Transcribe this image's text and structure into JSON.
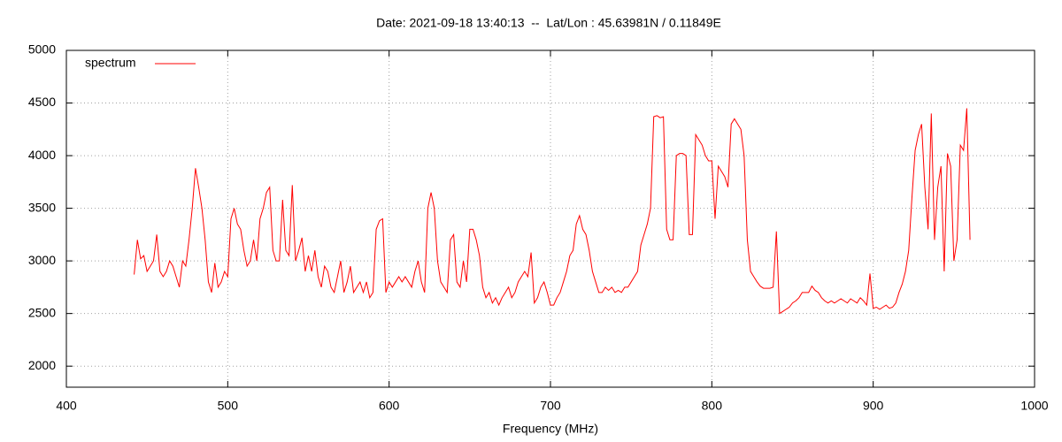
{
  "chart_data": {
    "type": "line",
    "title": "Date: 2021-09-18 13:40:13  --  Lat/Lon : 45.63981N / 0.11849E",
    "x_label": "Frequency (MHz)",
    "xlim": [
      400,
      1000
    ],
    "xticks": [
      400,
      500,
      600,
      700,
      800,
      900,
      1000
    ],
    "ylim": [
      1800,
      5000
    ],
    "yticks": [
      2000,
      2500,
      3000,
      3500,
      4000,
      4500,
      5000
    ],
    "grid": true,
    "legend": "top-left",
    "x": [
      442,
      444,
      446,
      448,
      450,
      452,
      454,
      456,
      458,
      460,
      462,
      464,
      466,
      468,
      470,
      472,
      474,
      476,
      478,
      480,
      482,
      484,
      486,
      488,
      490,
      492,
      494,
      496,
      498,
      500,
      502,
      504,
      506,
      508,
      510,
      512,
      514,
      516,
      518,
      520,
      522,
      524,
      526,
      528,
      530,
      532,
      534,
      536,
      538,
      540,
      542,
      544,
      546,
      548,
      550,
      552,
      554,
      556,
      558,
      560,
      562,
      564,
      566,
      568,
      570,
      572,
      574,
      576,
      578,
      580,
      582,
      584,
      586,
      588,
      590,
      592,
      594,
      596,
      598,
      600,
      602,
      604,
      606,
      608,
      610,
      612,
      614,
      616,
      618,
      620,
      622,
      624,
      626,
      628,
      630,
      632,
      634,
      636,
      638,
      640,
      642,
      644,
      646,
      648,
      650,
      652,
      654,
      656,
      658,
      660,
      662,
      664,
      666,
      668,
      670,
      672,
      674,
      676,
      678,
      680,
      682,
      684,
      686,
      688,
      690,
      692,
      694,
      696,
      698,
      700,
      702,
      704,
      706,
      708,
      710,
      712,
      714,
      716,
      718,
      720,
      722,
      724,
      726,
      728,
      730,
      732,
      734,
      736,
      738,
      740,
      742,
      744,
      746,
      748,
      750,
      752,
      754,
      756,
      758,
      760,
      762,
      764,
      766,
      768,
      770,
      772,
      774,
      776,
      778,
      780,
      782,
      784,
      786,
      788,
      790,
      792,
      794,
      796,
      798,
      800,
      802,
      804,
      806,
      808,
      810,
      812,
      814,
      816,
      818,
      820,
      822,
      824,
      826,
      828,
      830,
      832,
      834,
      836,
      838,
      840,
      842,
      844,
      846,
      848,
      850,
      852,
      854,
      856,
      858,
      860,
      862,
      864,
      866,
      868,
      870,
      872,
      874,
      876,
      878,
      880,
      882,
      884,
      886,
      888,
      890,
      892,
      894,
      896,
      898,
      900,
      902,
      904,
      906,
      908,
      910,
      912,
      914,
      916,
      918,
      920,
      922,
      924,
      926,
      928,
      930,
      932,
      934,
      936,
      938,
      940,
      942,
      944,
      946,
      948,
      950,
      952,
      954,
      956,
      958,
      960
    ],
    "series": [
      {
        "name": "spectrum",
        "color": "#ff0000",
        "values": [
          2870,
          3200,
          3020,
          3050,
          2900,
          2950,
          3000,
          3250,
          2900,
          2850,
          2900,
          3000,
          2950,
          2850,
          2750,
          3000,
          2950,
          3200,
          3500,
          3880,
          3700,
          3500,
          3200,
          2800,
          2700,
          2980,
          2750,
          2800,
          2900,
          2850,
          3400,
          3500,
          3350,
          3300,
          3100,
          2950,
          3000,
          3200,
          3000,
          3400,
          3500,
          3650,
          3700,
          3100,
          3000,
          3000,
          3580,
          3100,
          3050,
          3720,
          3000,
          3100,
          3220,
          2900,
          3050,
          2900,
          3100,
          2850,
          2750,
          2950,
          2900,
          2750,
          2700,
          2850,
          3000,
          2700,
          2800,
          2950,
          2700,
          2750,
          2800,
          2700,
          2800,
          2650,
          2700,
          3300,
          3380,
          3400,
          2700,
          2800,
          2750,
          2800,
          2850,
          2800,
          2850,
          2800,
          2750,
          2900,
          3000,
          2800,
          2700,
          3500,
          3650,
          3500,
          3000,
          2800,
          2750,
          2700,
          3200,
          3250,
          2800,
          2750,
          3000,
          2800,
          3300,
          3300,
          3200,
          3050,
          2750,
          2650,
          2700,
          2600,
          2650,
          2580,
          2650,
          2700,
          2750,
          2650,
          2700,
          2800,
          2850,
          2900,
          2850,
          3080,
          2600,
          2650,
          2750,
          2800,
          2700,
          2580,
          2580,
          2650,
          2700,
          2800,
          2900,
          3050,
          3100,
          3350,
          3430,
          3300,
          3250,
          3100,
          2900,
          2800,
          2700,
          2700,
          2750,
          2720,
          2750,
          2700,
          2720,
          2700,
          2750,
          2750,
          2800,
          2850,
          2900,
          3150,
          3250,
          3350,
          3500,
          4370,
          4380,
          4360,
          4370,
          3300,
          3200,
          3200,
          4000,
          4020,
          4020,
          4000,
          3250,
          3250,
          4200,
          4150,
          4100,
          4000,
          3950,
          3950,
          3400,
          3900,
          3850,
          3800,
          3700,
          4300,
          4350,
          4300,
          4250,
          4000,
          3200,
          2900,
          2850,
          2800,
          2760,
          2740,
          2740,
          2740,
          2750,
          3280,
          2500,
          2520,
          2540,
          2560,
          2600,
          2620,
          2650,
          2700,
          2700,
          2700,
          2760,
          2720,
          2700,
          2650,
          2620,
          2600,
          2620,
          2600,
          2620,
          2640,
          2620,
          2600,
          2640,
          2620,
          2600,
          2650,
          2620,
          2580,
          2880,
          2550,
          2560,
          2540,
          2560,
          2580,
          2550,
          2560,
          2600,
          2700,
          2780,
          2900,
          3100,
          3600,
          4050,
          4200,
          4300,
          3700,
          3300,
          4400,
          3200,
          3700,
          3900,
          2900,
          4020,
          3900,
          3000,
          3200,
          4100,
          4050,
          4450,
          3200
        ]
      }
    ]
  }
}
